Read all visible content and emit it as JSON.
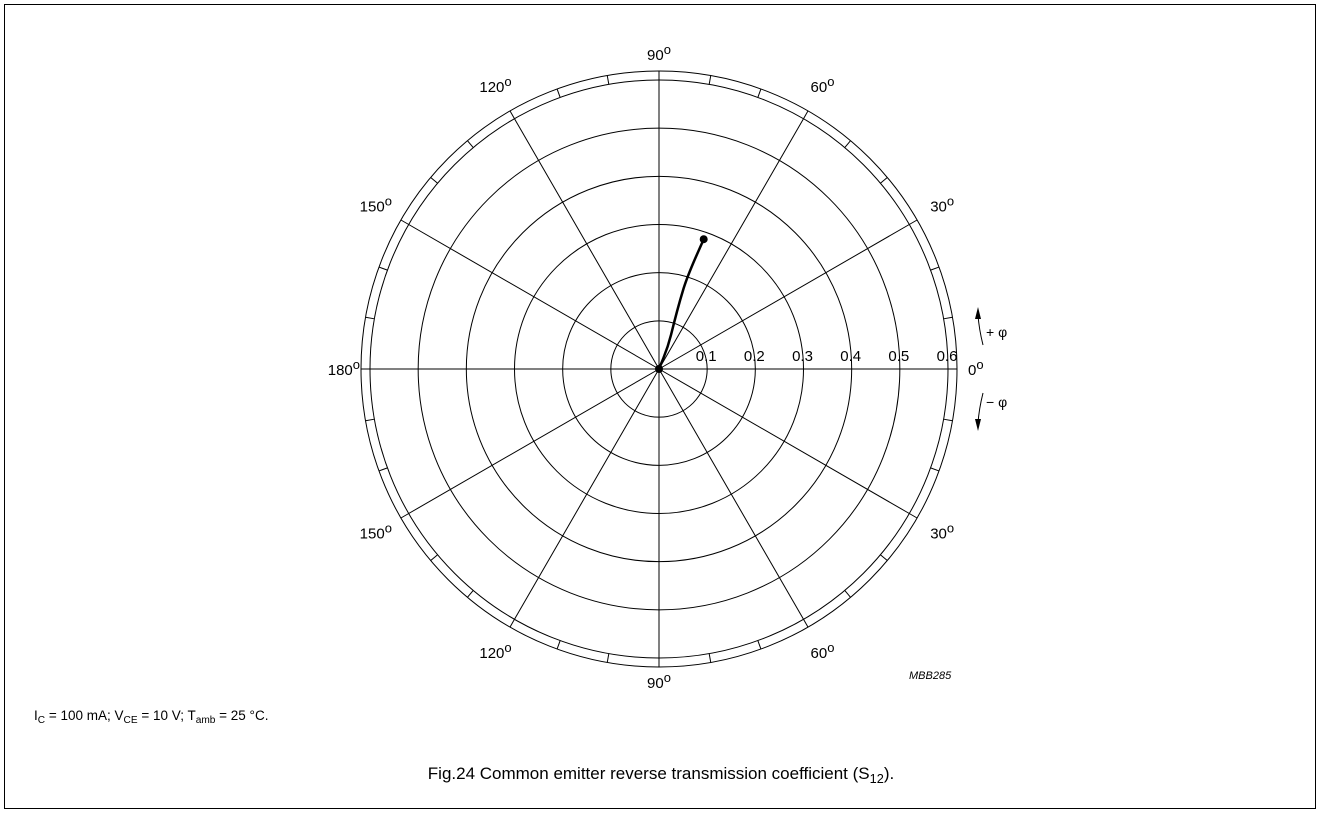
{
  "chart_data": {
    "type": "polar",
    "title": "",
    "grid": true,
    "radial_axis": {
      "ticks": [
        0.1,
        0.2,
        0.3,
        0.4,
        0.5,
        0.6
      ],
      "tick_labels": [
        "0.1",
        "0.2",
        "0.3",
        "0.4",
        "0.5",
        "0.6"
      ],
      "range": [
        0,
        0.6
      ]
    },
    "angle_labels": [
      {
        "angle": 90,
        "text": "90"
      },
      {
        "angle": 60,
        "text": "60"
      },
      {
        "angle": 30,
        "text": "30"
      },
      {
        "angle": 0,
        "text": "0"
      },
      {
        "angle": -30,
        "text": "30"
      },
      {
        "angle": -60,
        "text": "60"
      },
      {
        "angle": -90,
        "text": "90"
      },
      {
        "angle": -120,
        "text": "120"
      },
      {
        "angle": -150,
        "text": "150"
      },
      {
        "angle": 180,
        "text": "180"
      },
      {
        "angle": 150,
        "text": "150"
      },
      {
        "angle": 120,
        "text": "120"
      }
    ],
    "degree_symbol": "o",
    "direction_labels": {
      "positive": "+ φ",
      "negative": "− φ"
    },
    "series": [
      {
        "points": [
          {
            "r": 0.0,
            "angle": 0
          },
          {
            "r": 0.05,
            "angle": 68
          },
          {
            "r": 0.1,
            "angle": 72
          },
          {
            "r": 0.15,
            "angle": 73
          },
          {
            "r": 0.2,
            "angle": 73
          },
          {
            "r": 0.285,
            "angle": 71
          }
        ]
      }
    ],
    "code": "MBB285"
  },
  "conditions": {
    "ic_symbol": "I",
    "ic_sub": "C",
    "ic_value": " = 100 mA; ",
    "vce_symbol": "V",
    "vce_sub": "CE",
    "vce_value": " = 10 V; ",
    "tamb_symbol": "T",
    "tamb_sub": "amb",
    "tamb_value": " = 25 °C."
  },
  "caption": {
    "prefix": "Fig.24  Common emitter reverse transmission coefficient (S",
    "sub": "12",
    "suffix": ")."
  }
}
